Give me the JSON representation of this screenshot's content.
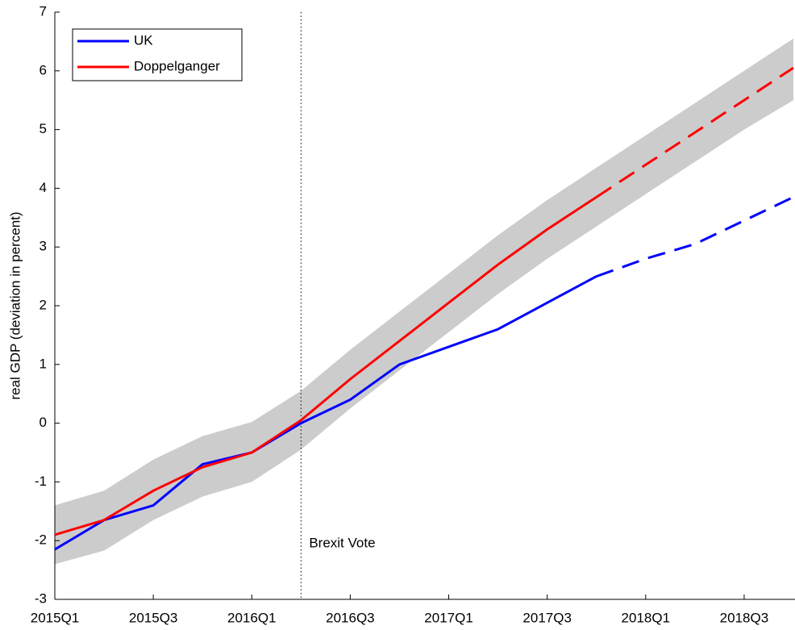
{
  "chart_data": {
    "type": "line",
    "ylabel": "real GDP (deviation in percent)",
    "categories": [
      "2015Q1",
      null,
      "2015Q3",
      null,
      "2016Q1",
      null,
      "2016Q3",
      null,
      "2017Q1",
      null,
      "2017Q3",
      null,
      "2018Q1",
      null,
      "2018Q3",
      null
    ],
    "ylim": [
      -3,
      7
    ],
    "yticks": [
      -3,
      -2,
      -1,
      0,
      1,
      2,
      3,
      4,
      5,
      6,
      7
    ],
    "band": {
      "color": "#cccccc",
      "upper": [
        -1.4,
        -1.15,
        -0.62,
        -0.22,
        0.02,
        0.55,
        1.25,
        1.9,
        2.55,
        3.2,
        3.8,
        4.35,
        4.9,
        5.45,
        6.0,
        6.55
      ],
      "lower": [
        -2.4,
        -2.17,
        -1.65,
        -1.25,
        -1.0,
        -0.45,
        0.25,
        0.9,
        1.55,
        2.2,
        2.8,
        3.35,
        3.9,
        4.45,
        5.0,
        5.5
      ]
    },
    "series": [
      {
        "name": "UK",
        "color": "#0000ff",
        "dashed_from": 11,
        "values": [
          -2.15,
          -1.65,
          -1.4,
          -0.7,
          -0.5,
          0.0,
          0.4,
          1.0,
          1.3,
          1.6,
          2.05,
          2.5,
          2.8,
          3.05,
          3.45,
          3.85
        ]
      },
      {
        "name": "Doppelganger",
        "color": "#ff0000",
        "dashed_from": 11,
        "values": [
          -1.9,
          -1.65,
          -1.15,
          -0.75,
          -0.5,
          0.05,
          0.75,
          1.4,
          2.05,
          2.7,
          3.3,
          3.85,
          4.4,
          4.95,
          5.5,
          6.05
        ]
      }
    ],
    "vline": {
      "index": 5,
      "label": "Brexit Vote"
    },
    "legend": "upper left"
  }
}
